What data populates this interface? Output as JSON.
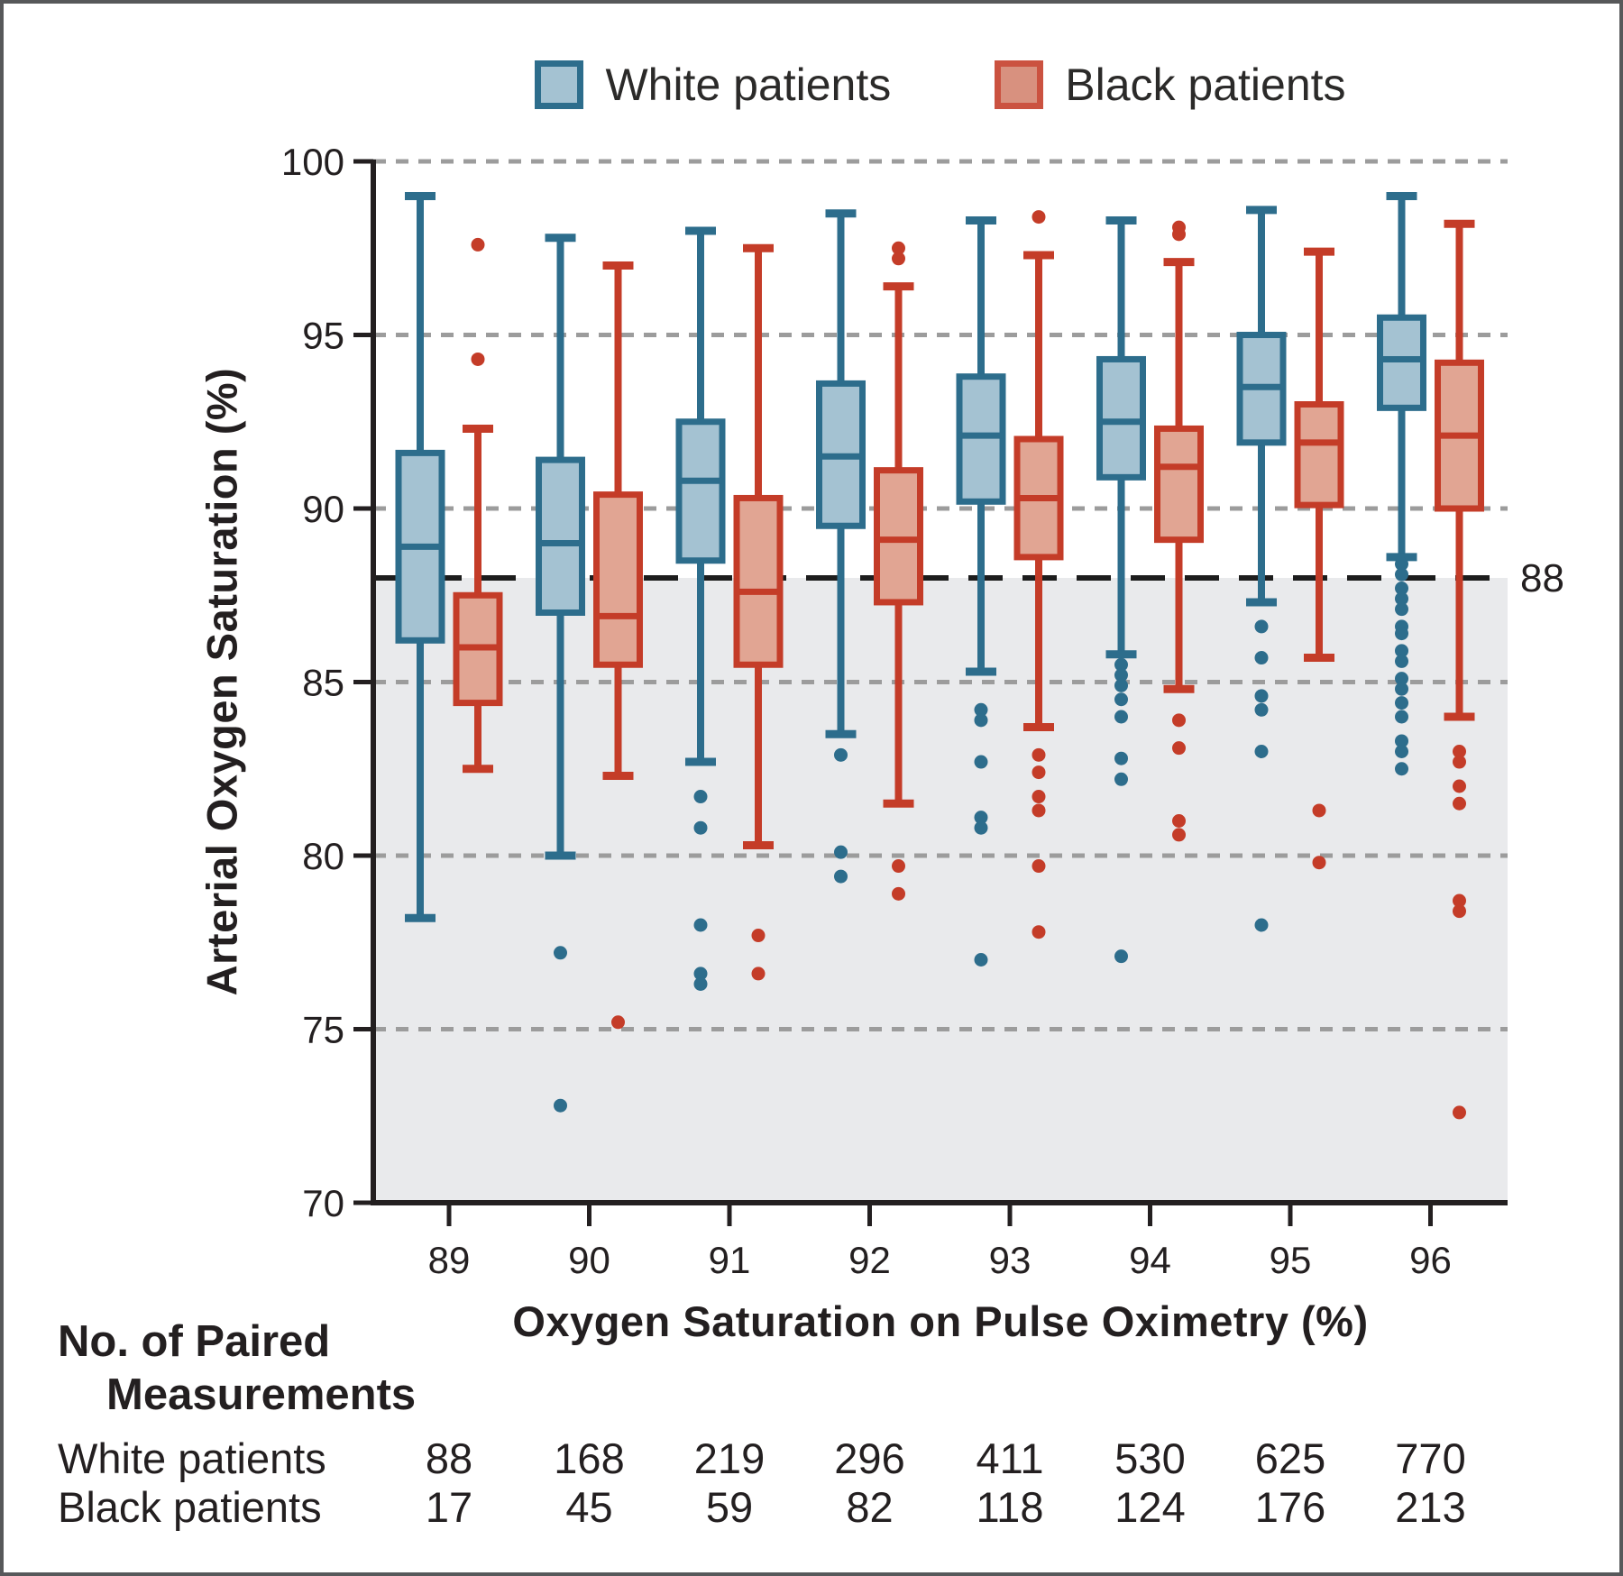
{
  "legend": {
    "items": [
      {
        "label": "White patients",
        "fill": "#A4C2D2",
        "border": "#2D6D8C"
      },
      {
        "label": "Black patients",
        "fill": "#D8917F",
        "border": "#CB5240"
      }
    ]
  },
  "reference_line": {
    "value": 88,
    "label": "88"
  },
  "colors": {
    "white_series_stroke": "#2D6D8C",
    "white_series_fill": "#A4C2D2",
    "black_series_stroke": "#C43C28",
    "black_series_fill": "#E1A593",
    "shaded_band": "#E9EAEC",
    "gridline": "#9C9C9C",
    "reference_dash": "#1D1D1D",
    "axis_text": "#231F20",
    "figure_border": "#57585A"
  },
  "chart_data": {
    "type": "boxplot",
    "xlabel": "Oxygen Saturation on Pulse Oximetry (%)",
    "ylabel": "Arterial Oxygen Saturation (%)",
    "ylim": [
      70,
      100
    ],
    "y_ticks": [
      100,
      95,
      90,
      85,
      80,
      75,
      70
    ],
    "grid_values": [
      100,
      95,
      90,
      85,
      80,
      75
    ],
    "reference_value": 88,
    "shaded_region": {
      "from": 70,
      "to": 88
    },
    "legend_position": "top-center",
    "categories": [
      "89",
      "90",
      "91",
      "92",
      "93",
      "94",
      "95",
      "96"
    ],
    "series": [
      {
        "name": "White patients",
        "stroke": "#2D6D8C",
        "fill": "#A4C2D2",
        "boxes": [
          {
            "low": 78.2,
            "q1": 86.2,
            "median": 88.9,
            "q3": 91.6,
            "high": 99.0,
            "outliers": []
          },
          {
            "low": 80.0,
            "q1": 87.0,
            "median": 89.0,
            "q3": 91.4,
            "high": 97.8,
            "outliers": [
              77.2,
              72.8
            ]
          },
          {
            "low": 82.7,
            "q1": 88.5,
            "median": 90.8,
            "q3": 92.5,
            "high": 98.0,
            "outliers": [
              81.7,
              80.8,
              78.0,
              76.6,
              76.3
            ]
          },
          {
            "low": 83.5,
            "q1": 89.5,
            "median": 91.5,
            "q3": 93.6,
            "high": 98.5,
            "outliers": [
              82.9,
              80.1,
              79.4
            ]
          },
          {
            "low": 85.3,
            "q1": 90.2,
            "median": 92.1,
            "q3": 93.8,
            "high": 98.3,
            "outliers": [
              84.2,
              83.9,
              82.7,
              81.1,
              80.8,
              77.0
            ]
          },
          {
            "low": 85.8,
            "q1": 90.9,
            "median": 92.5,
            "q3": 94.3,
            "high": 98.3,
            "outliers": [
              85.5,
              85.2,
              84.9,
              84.5,
              84.0,
              82.8,
              82.2,
              77.1
            ]
          },
          {
            "low": 87.3,
            "q1": 91.9,
            "median": 93.5,
            "q3": 95.0,
            "high": 98.6,
            "outliers": [
              86.6,
              85.7,
              84.6,
              84.2,
              83.0,
              78.0
            ]
          },
          {
            "low": 88.6,
            "q1": 92.9,
            "median": 94.3,
            "q3": 95.5,
            "high": 99.0,
            "outliers": [
              88.4,
              88.1,
              87.7,
              87.4,
              87.1,
              86.6,
              86.4,
              85.9,
              85.6,
              85.1,
              84.8,
              84.4,
              84.0,
              83.3,
              83.0,
              82.5
            ]
          }
        ]
      },
      {
        "name": "Black patients",
        "stroke": "#C43C28",
        "fill": "#E1A593",
        "boxes": [
          {
            "low": 82.5,
            "q1": 84.4,
            "median": 86.0,
            "q3": 87.5,
            "high": 92.3,
            "outliers": [
              97.6,
              94.3
            ]
          },
          {
            "low": 82.3,
            "q1": 85.5,
            "median": 86.9,
            "q3": 90.4,
            "high": 97.0,
            "outliers": [
              75.2
            ]
          },
          {
            "low": 80.3,
            "q1": 85.5,
            "median": 87.6,
            "q3": 90.3,
            "high": 97.5,
            "outliers": [
              77.7,
              76.6
            ]
          },
          {
            "low": 81.5,
            "q1": 87.3,
            "median": 89.1,
            "q3": 91.1,
            "high": 96.4,
            "outliers": [
              97.5,
              97.2,
              79.7,
              78.9
            ]
          },
          {
            "low": 83.7,
            "q1": 88.6,
            "median": 90.3,
            "q3": 92.0,
            "high": 97.3,
            "outliers": [
              98.4,
              82.9,
              82.4,
              81.7,
              81.3,
              79.7,
              77.8
            ]
          },
          {
            "low": 84.8,
            "q1": 89.1,
            "median": 91.2,
            "q3": 92.3,
            "high": 97.1,
            "outliers": [
              98.1,
              97.9,
              83.9,
              83.1,
              81.0,
              80.6
            ]
          },
          {
            "low": 85.7,
            "q1": 90.1,
            "median": 91.9,
            "q3": 93.0,
            "high": 97.4,
            "outliers": [
              81.3,
              79.8
            ]
          },
          {
            "low": 84.0,
            "q1": 90.0,
            "median": 92.1,
            "q3": 94.2,
            "high": 98.2,
            "outliers": [
              83.0,
              82.7,
              82.0,
              81.5,
              78.7,
              78.4,
              72.6
            ]
          }
        ]
      }
    ]
  },
  "table": {
    "header_line1": "No. of Paired",
    "header_line2": "Measurements",
    "rows": [
      {
        "label": "White patients",
        "values": [
          "88",
          "168",
          "219",
          "296",
          "411",
          "530",
          "625",
          "770"
        ]
      },
      {
        "label": "Black patients",
        "values": [
          "17",
          "45",
          "59",
          "82",
          "118",
          "124",
          "176",
          "213"
        ]
      }
    ]
  }
}
